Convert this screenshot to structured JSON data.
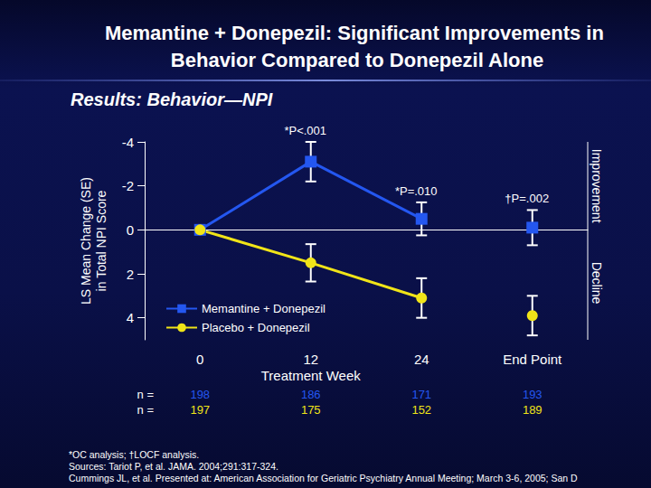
{
  "chart_data": {
    "type": "line",
    "title": "Memantine + Donepezil: Significant Improvements in Behavior Compared to Donepezil Alone",
    "subtitle": "Results: Behavior—NPI",
    "xlabel": "Treatment Week",
    "ylabel": "LS Mean Change (SE)\nin Total NPI Score",
    "categories": [
      "0",
      "12",
      "24",
      "End Point"
    ],
    "series": [
      {
        "name": "Memantine + Donepezil",
        "color": "#2457f0",
        "marker": "square",
        "values": [
          0,
          -3.1,
          -0.5,
          -0.1
        ],
        "se": [
          null,
          0.9,
          0.75,
          0.8
        ]
      },
      {
        "name": "Placebo + Donepezil",
        "color": "#f0e418",
        "marker": "circle",
        "values": [
          0,
          1.5,
          3.1,
          3.9
        ],
        "se": [
          null,
          0.85,
          0.9,
          0.9
        ]
      }
    ],
    "ylim": [
      -4,
      5
    ],
    "yticks": [
      -4,
      -2,
      0,
      2,
      4
    ],
    "grid": false,
    "legend": "lower left",
    "annotations": [
      {
        "text": "*P<.001",
        "x": "12"
      },
      {
        "text": "*P=.010",
        "x": "24"
      },
      {
        "text": "†P=.002",
        "x": "End Point"
      }
    ],
    "direction_labels": {
      "top": "Improvement",
      "bottom": "Decline"
    },
    "n_rows": [
      {
        "label": "n =",
        "values": [
          198,
          186,
          171,
          193
        ]
      },
      {
        "label": "n =",
        "values": [
          197,
          175,
          152,
          189
        ]
      }
    ],
    "footnotes": [
      "*OC analysis; †LOCF analysis.",
      "Sources: Tariot P, et al. JAMA. 2004;291:317-324.",
      "Cummings JL, et al. Presented at: American Association for Geriatric Psychiatry Annual Meeting; March 3-6, 2005; San D"
    ]
  }
}
